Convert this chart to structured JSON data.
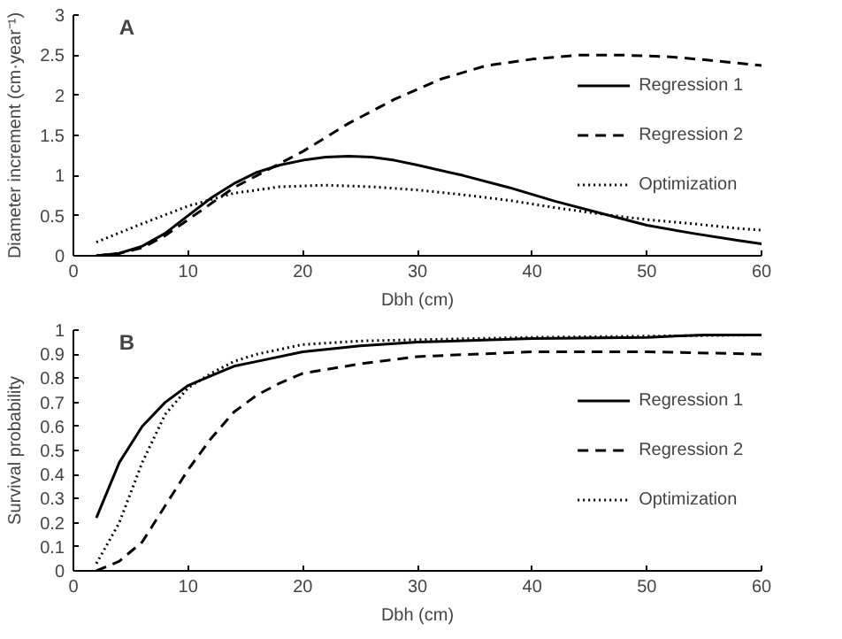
{
  "chart_data": [
    {
      "type": "line",
      "annotations": [
        "A"
      ],
      "xlabel": "Dbh (cm)",
      "ylabel": "Diameter increment (cm·year⁻¹)",
      "xlim": [
        0,
        60
      ],
      "ylim": [
        0,
        3
      ],
      "xticks": [
        0,
        10,
        20,
        30,
        40,
        50,
        60
      ],
      "yticks": [
        0,
        0.5,
        1,
        1.5,
        2,
        2.5,
        3
      ],
      "grid": false,
      "legend": "right",
      "marker": "none",
      "series": [
        {
          "name": "Regression 1",
          "color": "#000000",
          "line_style": "solid",
          "x": [
            2,
            4,
            6,
            8,
            10,
            12,
            14,
            16,
            18,
            20,
            22,
            24,
            26,
            28,
            30,
            34,
            38,
            42,
            46,
            50,
            54,
            58,
            60
          ],
          "values": [
            0,
            0.03,
            0.12,
            0.28,
            0.5,
            0.72,
            0.9,
            1.04,
            1.13,
            1.19,
            1.23,
            1.24,
            1.23,
            1.19,
            1.13,
            1.0,
            0.85,
            0.68,
            0.53,
            0.38,
            0.28,
            0.19,
            0.15
          ]
        },
        {
          "name": "Regression 2",
          "color": "#000000",
          "line_style": "dashed",
          "x": [
            2,
            4,
            6,
            8,
            10,
            12,
            14,
            16,
            18,
            20,
            24,
            28,
            32,
            36,
            40,
            44,
            48,
            52,
            56,
            60
          ],
          "values": [
            0,
            0.03,
            0.1,
            0.25,
            0.45,
            0.65,
            0.85,
            1.0,
            1.15,
            1.3,
            1.65,
            1.95,
            2.2,
            2.37,
            2.45,
            2.5,
            2.5,
            2.48,
            2.43,
            2.37
          ]
        },
        {
          "name": "Optimization",
          "color": "#000000",
          "line_style": "dotted",
          "x": [
            2,
            6,
            10,
            14,
            18,
            22,
            26,
            30,
            34,
            38,
            42,
            46,
            50,
            54,
            58,
            60
          ],
          "values": [
            0.17,
            0.4,
            0.62,
            0.78,
            0.86,
            0.88,
            0.86,
            0.82,
            0.76,
            0.69,
            0.6,
            0.52,
            0.45,
            0.4,
            0.34,
            0.32
          ]
        }
      ]
    },
    {
      "type": "line",
      "annotations": [
        "B"
      ],
      "xlabel": "Dbh (cm)",
      "ylabel": "Survival probability",
      "xlim": [
        0,
        60
      ],
      "ylim": [
        0,
        1
      ],
      "xticks": [
        0,
        10,
        20,
        30,
        40,
        50,
        60
      ],
      "yticks": [
        0,
        0.1,
        0.2,
        0.3,
        0.4,
        0.5,
        0.6,
        0.7,
        0.8,
        0.9,
        1
      ],
      "grid": false,
      "legend": "right",
      "marker": "none",
      "series": [
        {
          "name": "Regression 1",
          "color": "#000000",
          "line_style": "solid",
          "x": [
            2,
            4,
            6,
            8,
            10,
            12,
            14,
            16,
            20,
            25,
            30,
            40,
            50,
            55,
            60
          ],
          "values": [
            0.22,
            0.45,
            0.6,
            0.7,
            0.77,
            0.81,
            0.85,
            0.87,
            0.91,
            0.935,
            0.95,
            0.965,
            0.97,
            0.98,
            0.98
          ]
        },
        {
          "name": "Regression 2",
          "color": "#000000",
          "line_style": "dashed",
          "x": [
            2,
            4,
            6,
            8,
            10,
            12,
            14,
            16,
            18,
            20,
            25,
            30,
            40,
            50,
            60
          ],
          "values": [
            0,
            0.04,
            0.12,
            0.27,
            0.42,
            0.55,
            0.66,
            0.73,
            0.78,
            0.82,
            0.86,
            0.89,
            0.91,
            0.91,
            0.9
          ]
        },
        {
          "name": "Optimization",
          "color": "#000000",
          "line_style": "dotted",
          "x": [
            2,
            4,
            6,
            8,
            10,
            12,
            14,
            16,
            20,
            25,
            30,
            40,
            50,
            60
          ],
          "values": [
            0.03,
            0.2,
            0.45,
            0.65,
            0.76,
            0.82,
            0.87,
            0.9,
            0.94,
            0.955,
            0.96,
            0.97,
            0.975,
            0.98
          ]
        }
      ]
    }
  ]
}
